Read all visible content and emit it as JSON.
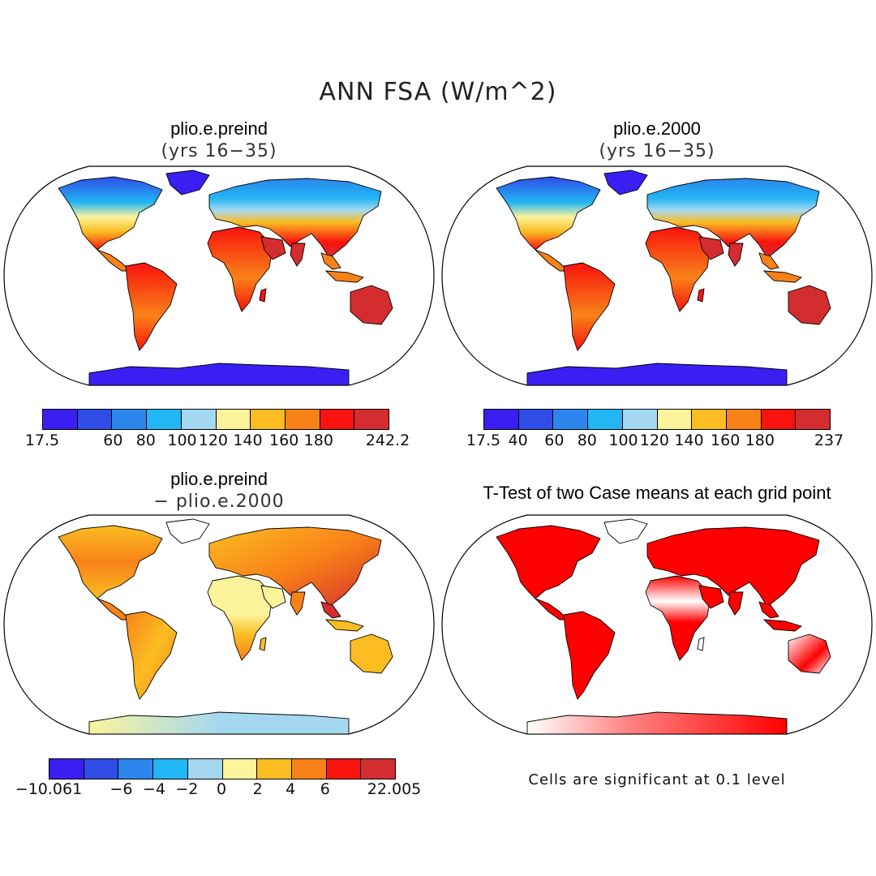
{
  "title": "ANN FSA (W/m^2)",
  "palette": [
    "#3b1ff2",
    "#2e4de6",
    "#2c86ee",
    "#22b6f4",
    "#a4d8f0",
    "#fbf49b",
    "#fbbd22",
    "#f98218",
    "#f9130f",
    "#d42d2f"
  ],
  "significance_color": "#ff0000",
  "panels": [
    {
      "id": "p1",
      "title": "plio.e.preind",
      "subtitle": "(yrs 16−35)",
      "colorbar_ticks": [
        "17.5",
        "60",
        "80",
        "100",
        "120",
        "140",
        "160",
        "180",
        "242.2"
      ]
    },
    {
      "id": "p2",
      "title": "plio.e.2000",
      "subtitle": "(yrs 16−35)",
      "colorbar_ticks": [
        "17.5",
        "40",
        "60",
        "80",
        "100",
        "120",
        "140",
        "160",
        "180",
        "237"
      ]
    },
    {
      "id": "p3",
      "title": "plio.e.preind",
      "subtitle": "− plio.e.2000",
      "colorbar_ticks": [
        "−10.061",
        "−6",
        "−4",
        "−2",
        "0",
        "2",
        "4",
        "6",
        "22.005"
      ]
    },
    {
      "id": "p4",
      "title": "T-Test of two Case means at each grid point",
      "note": "Cells are significant at 0.1 level"
    }
  ]
}
